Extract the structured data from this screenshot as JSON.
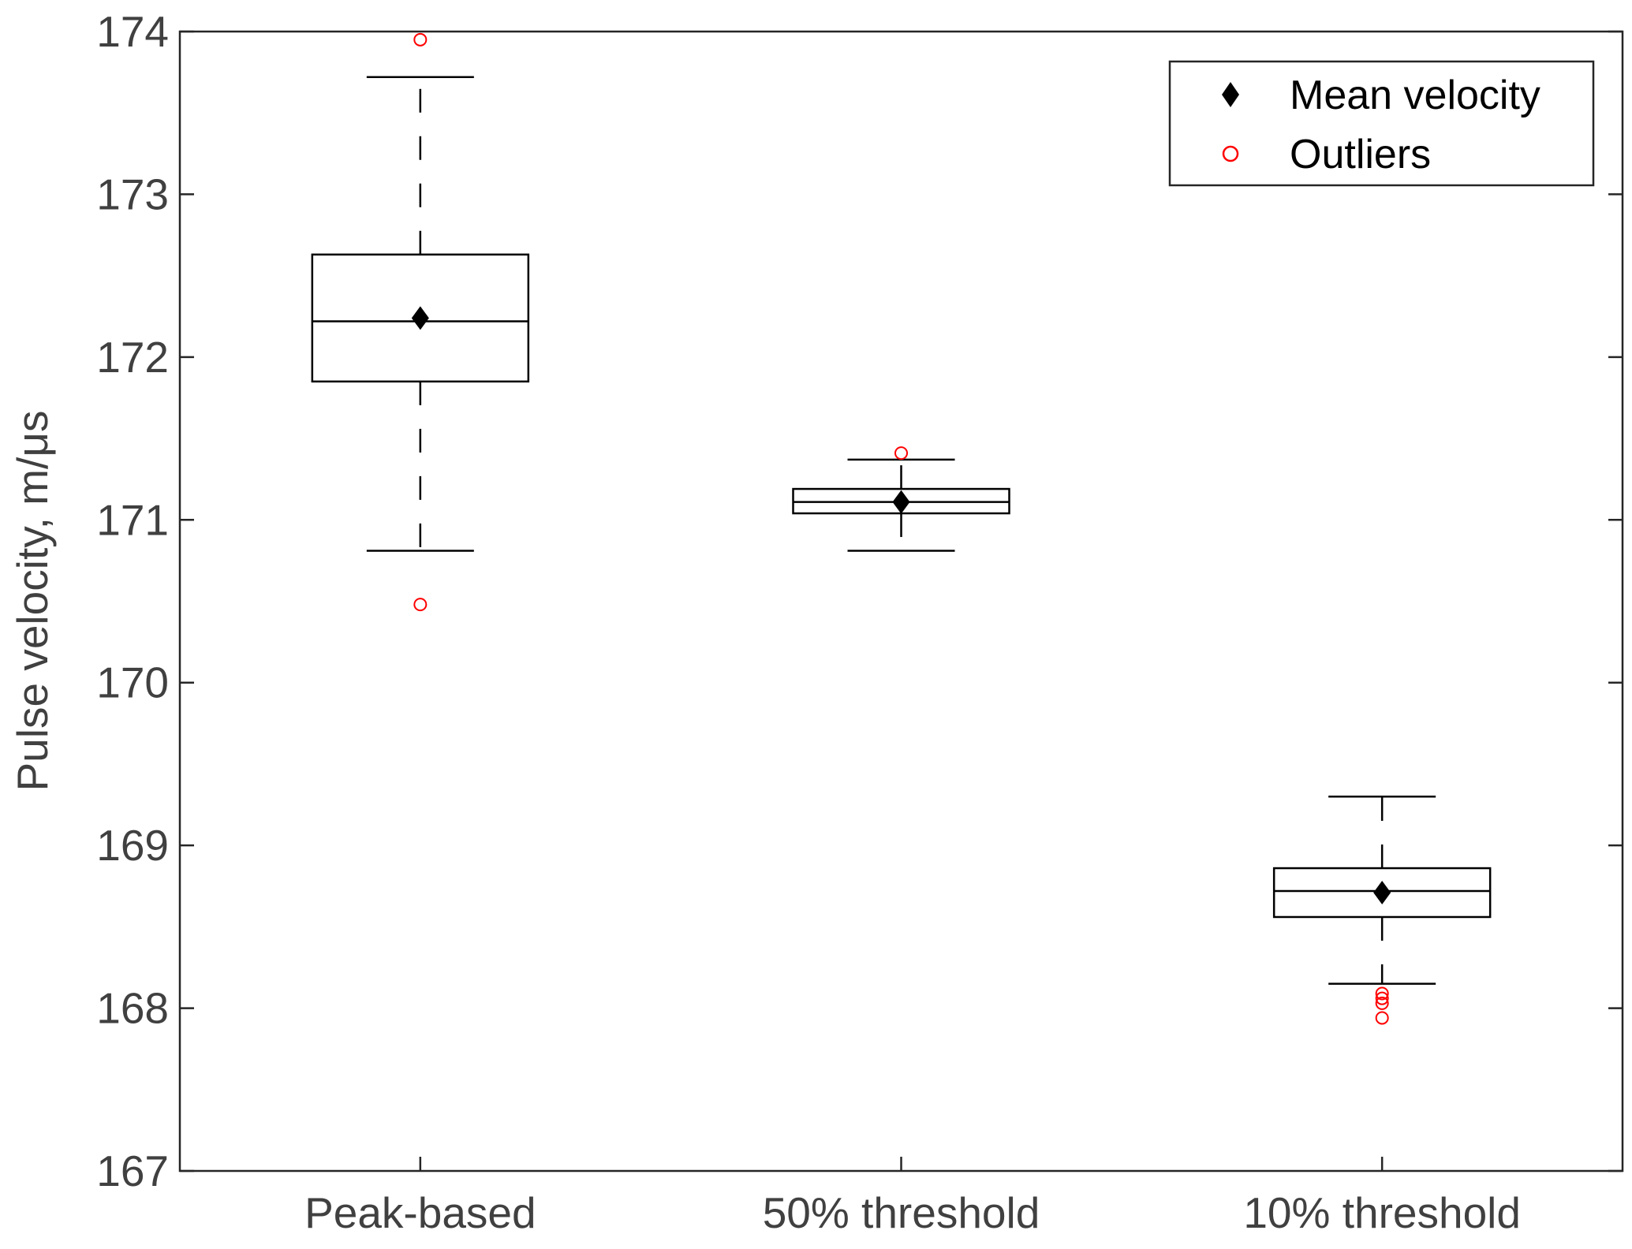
{
  "chart_data": {
    "type": "box",
    "title": "",
    "xlabel": "",
    "ylabel": "Pulse velocity, m/μs",
    "ylim": [
      167,
      174
    ],
    "yticks": [
      167,
      168,
      169,
      170,
      171,
      172,
      173,
      174
    ],
    "ytick_labels": [
      "167",
      "168",
      "169",
      "170",
      "171",
      "172",
      "173",
      "174"
    ],
    "grid": false,
    "legend_position": "top-right",
    "categories": [
      "Peak-based",
      "50% threshold",
      "10% threshold"
    ],
    "boxes": [
      {
        "category": "Peak-based",
        "whisker_low": 170.81,
        "q1": 171.85,
        "median": 172.22,
        "q3": 172.63,
        "whisker_high": 173.72,
        "mean": 172.24,
        "outliers": [
          173.95,
          170.48
        ]
      },
      {
        "category": "50% threshold",
        "whisker_low": 170.81,
        "q1": 171.04,
        "median": 171.11,
        "q3": 171.19,
        "whisker_high": 171.37,
        "mean": 171.11,
        "outliers": [
          171.41
        ]
      },
      {
        "category": "10% threshold",
        "whisker_low": 168.15,
        "q1": 168.56,
        "median": 168.72,
        "q3": 168.86,
        "whisker_high": 169.3,
        "mean": 168.71,
        "outliers": [
          168.09,
          168.06,
          168.03,
          167.94
        ]
      }
    ],
    "legend": [
      {
        "label": "Mean velocity",
        "marker": "filled-diamond",
        "color": "#000000"
      },
      {
        "label": "Outliers",
        "marker": "open-circle",
        "color": "#ff0000"
      }
    ]
  },
  "colors": {
    "box": "#000000",
    "mean": "#000000",
    "outlier": "#ff0000",
    "axis": "#262626",
    "text": "#404040"
  }
}
